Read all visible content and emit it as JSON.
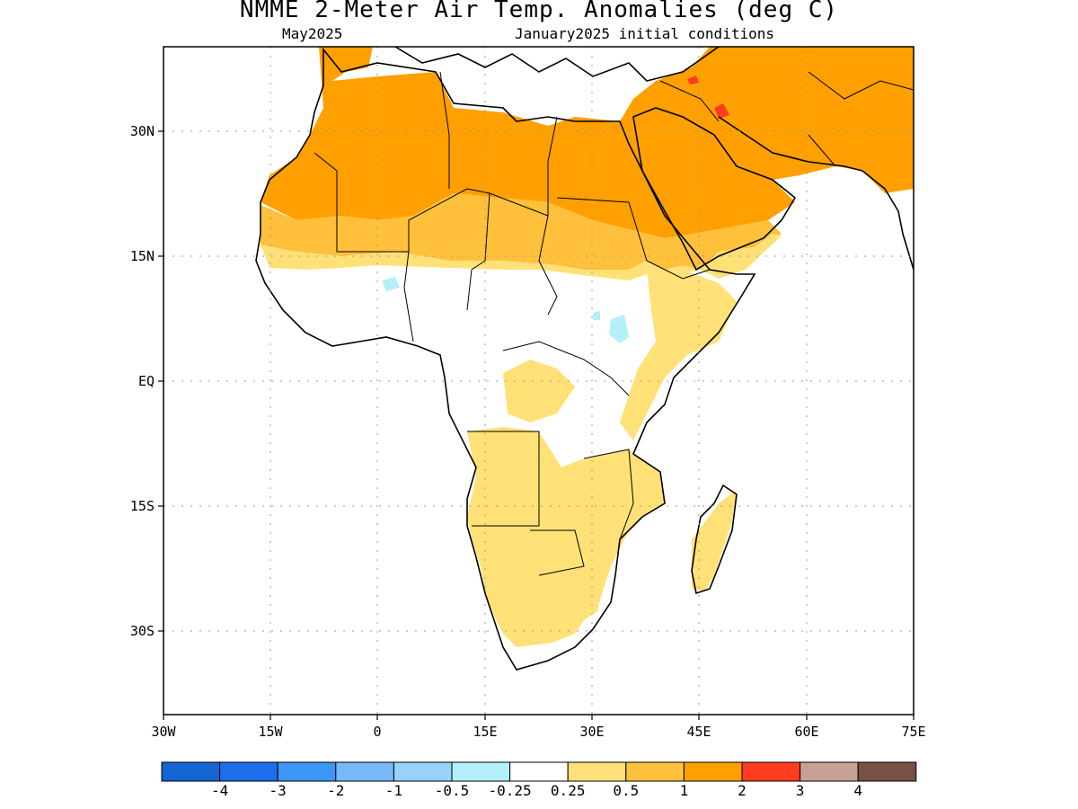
{
  "title": "NMME 2-Meter Air Temp. Anomalies (deg C)",
  "subtitle_left": "May2025",
  "subtitle_right": "January2025 initial conditions",
  "y_ticks": [
    "30N",
    "15N",
    "EQ",
    "15S",
    "30S"
  ],
  "x_ticks": [
    "30W",
    "15W",
    "0",
    "15E",
    "30E",
    "45E",
    "60E",
    "75E"
  ],
  "colorbar": {
    "colors": [
      "#1464d2",
      "#1e6eeb",
      "#3c96f5",
      "#78b9fa",
      "#96d2fa",
      "#b4f0fa",
      "#ffffff",
      "#ffe178",
      "#ffc03c",
      "#ffa000",
      "#ff3c1e",
      "#c8a096",
      "#785046"
    ],
    "labels": [
      "-4",
      "-3",
      "-2",
      "-1",
      "-0.5",
      "-0.25",
      "0.25",
      "0.5",
      "1",
      "2",
      "3",
      "4"
    ]
  }
}
